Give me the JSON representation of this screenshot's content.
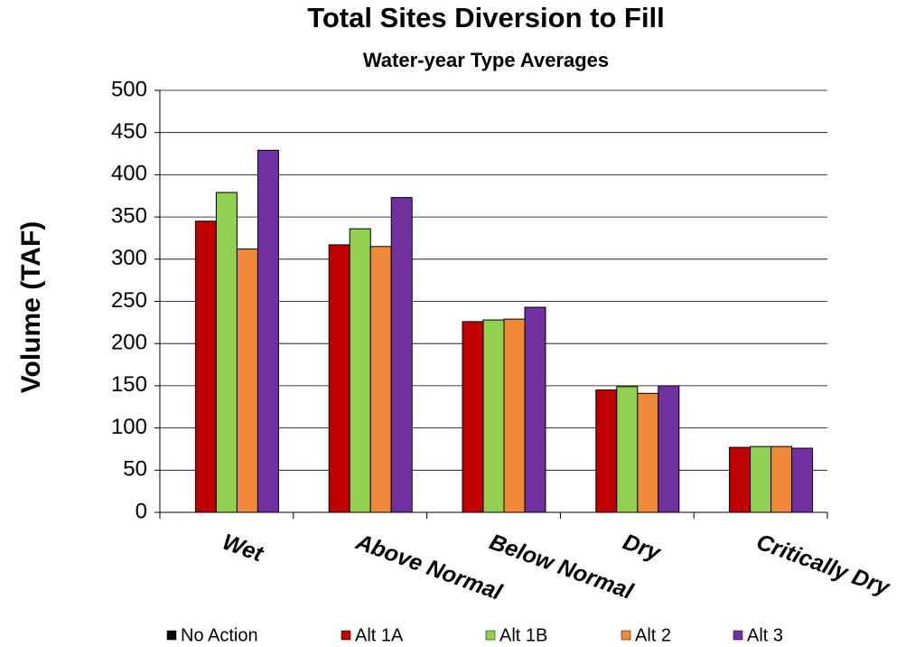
{
  "chart_data": {
    "type": "bar",
    "title": "Total Sites Diversion to Fill",
    "subtitle": "Water-year Type Averages",
    "y_label": "Volume (TAF)",
    "categories": [
      "Wet",
      "Above Normal",
      "Below Normal",
      "Dry",
      "Critically Dry"
    ],
    "series": [
      {
        "name": "No Action",
        "color": "#000000",
        "values": [
          null,
          null,
          null,
          null,
          null
        ]
      },
      {
        "name": "Alt 1A",
        "color": "#c00000",
        "values": [
          345,
          317,
          226,
          145,
          77
        ]
      },
      {
        "name": "Alt 1B",
        "color": "#92d050",
        "values": [
          379,
          336,
          228,
          149,
          78
        ]
      },
      {
        "name": "Alt 2",
        "color": "#f0883a",
        "values": [
          312,
          315,
          229,
          141,
          78
        ]
      },
      {
        "name": "Alt 3",
        "color": "#7030a0",
        "values": [
          429,
          373,
          243,
          150,
          76
        ]
      }
    ],
    "ylim": [
      0,
      500
    ],
    "yticks": [
      0,
      50,
      100,
      150,
      200,
      250,
      300,
      350,
      400,
      450,
      500
    ],
    "grid": true
  }
}
